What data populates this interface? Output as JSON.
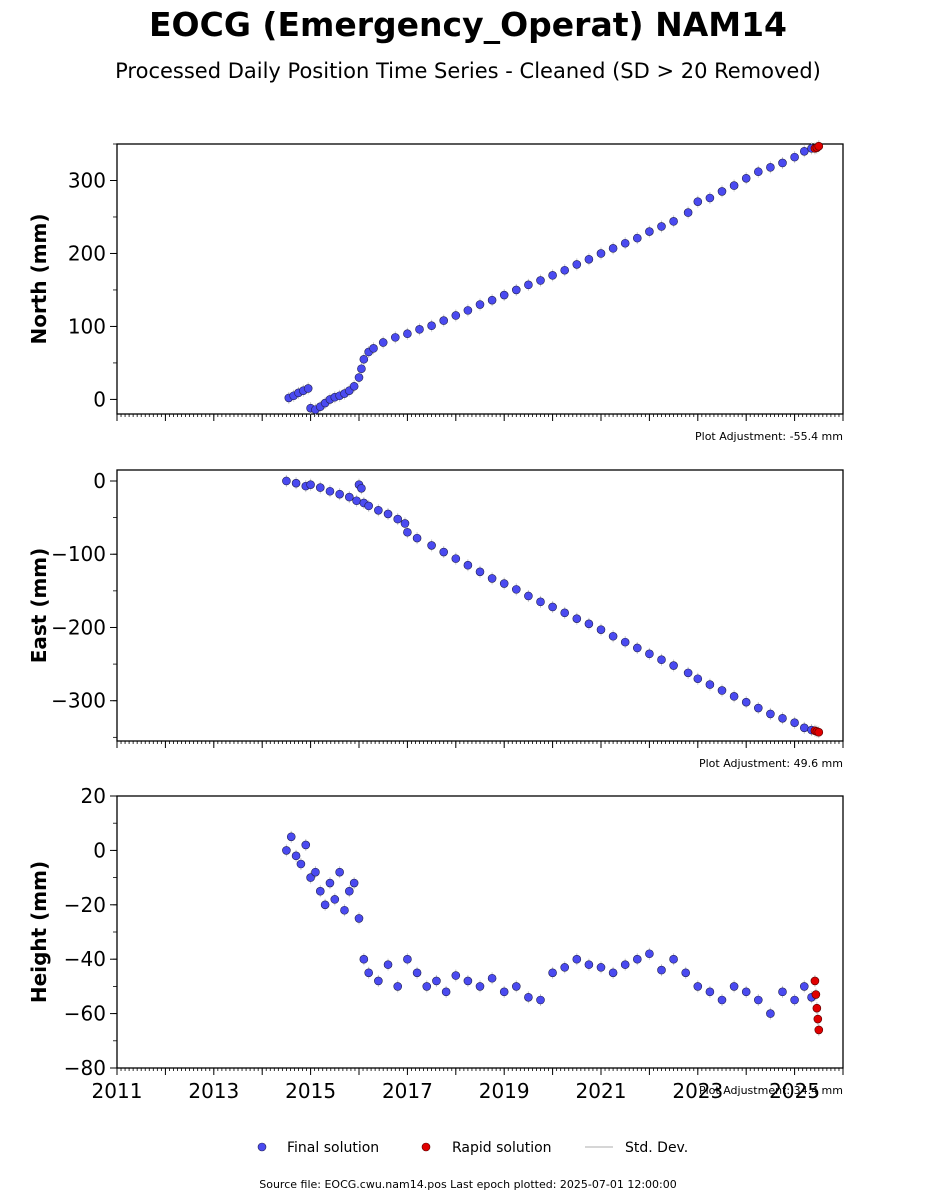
{
  "title": "EOCG (Emergency_Operat) NAM14",
  "subtitle": "Processed Daily Position Time Series - Cleaned (SD > 20 Removed)",
  "colors": {
    "final": "#4a4af0",
    "rapid": "#e00000",
    "stddev": "#c8c8c8",
    "edge": "#202050"
  },
  "legend": {
    "final": "Final solution",
    "rapid": "Rapid solution",
    "stddev": "Std. Dev."
  },
  "footer": "Source file: EOCG.cwu.nam14.pos  Last epoch plotted: 2025-07-01 12:00:00",
  "chart_data": [
    {
      "type": "scatter",
      "ylabel": "North (mm)",
      "xlim": [
        2011,
        2026
      ],
      "ylim": [
        -20,
        350
      ],
      "yticks": [
        0,
        100,
        200,
        300
      ],
      "yticklabels": [
        "0",
        "100",
        "200",
        "300"
      ],
      "adjustment": "Plot Adjustment: -55.4 mm",
      "series": [
        {
          "name": "Final solution",
          "x": [
            2014.55,
            2014.65,
            2014.75,
            2014.85,
            2014.95,
            2015.0,
            2015.1,
            2015.2,
            2015.3,
            2015.4,
            2015.5,
            2015.6,
            2015.7,
            2015.8,
            2015.9,
            2016.0,
            2016.05,
            2016.1,
            2016.2,
            2016.3,
            2016.5,
            2016.75,
            2017.0,
            2017.25,
            2017.5,
            2017.75,
            2018.0,
            2018.25,
            2018.5,
            2018.75,
            2019.0,
            2019.25,
            2019.5,
            2019.75,
            2020.0,
            2020.25,
            2020.5,
            2020.75,
            2021.0,
            2021.25,
            2021.5,
            2021.75,
            2022.0,
            2022.25,
            2022.5,
            2022.8,
            2023.0,
            2023.25,
            2023.5,
            2023.75,
            2024.0,
            2024.25,
            2024.5,
            2024.75,
            2025.0,
            2025.2,
            2025.35
          ],
          "y": [
            2,
            5,
            9,
            12,
            15,
            -12,
            -14,
            -10,
            -5,
            0,
            3,
            5,
            8,
            12,
            18,
            30,
            42,
            55,
            65,
            70,
            78,
            85,
            90,
            96,
            101,
            108,
            115,
            122,
            130,
            136,
            143,
            150,
            157,
            163,
            170,
            177,
            185,
            192,
            200,
            207,
            214,
            221,
            230,
            237,
            244,
            256,
            271,
            276,
            285,
            293,
            303,
            312,
            318,
            324,
            332,
            340,
            344
          ]
        },
        {
          "name": "Rapid solution",
          "x": [
            2025.42,
            2025.46,
            2025.5
          ],
          "y": [
            344,
            345,
            347
          ]
        }
      ]
    },
    {
      "type": "scatter",
      "ylabel": "East (mm)",
      "xlim": [
        2011,
        2026
      ],
      "ylim": [
        -355,
        15
      ],
      "yticks": [
        0,
        -100,
        -200,
        -300
      ],
      "yticklabels": [
        "0",
        "−100",
        "−200",
        "−300"
      ],
      "adjustment": "Plot Adjustment: 49.6 mm",
      "series": [
        {
          "name": "Final solution",
          "x": [
            2014.5,
            2014.7,
            2014.9,
            2015.0,
            2015.2,
            2015.4,
            2015.6,
            2015.8,
            2015.95,
            2016.0,
            2016.05,
            2016.1,
            2016.2,
            2016.4,
            2016.6,
            2016.8,
            2016.95,
            2017.0,
            2017.2,
            2017.5,
            2017.75,
            2018.0,
            2018.25,
            2018.5,
            2018.75,
            2019.0,
            2019.25,
            2019.5,
            2019.75,
            2020.0,
            2020.25,
            2020.5,
            2020.75,
            2021.0,
            2021.25,
            2021.5,
            2021.75,
            2022.0,
            2022.25,
            2022.5,
            2022.8,
            2023.0,
            2023.25,
            2023.5,
            2023.75,
            2024.0,
            2024.25,
            2024.5,
            2024.75,
            2025.0,
            2025.2,
            2025.35
          ],
          "y": [
            0,
            -3,
            -7,
            -5,
            -9,
            -14,
            -18,
            -22,
            -27,
            -5,
            -10,
            -30,
            -34,
            -40,
            -45,
            -52,
            -58,
            -70,
            -78,
            -88,
            -97,
            -106,
            -115,
            -124,
            -133,
            -140,
            -148,
            -157,
            -165,
            -172,
            -180,
            -188,
            -195,
            -203,
            -212,
            -220,
            -228,
            -236,
            -244,
            -252,
            -262,
            -270,
            -278,
            -286,
            -294,
            -302,
            -310,
            -318,
            -324,
            -330,
            -337,
            -340
          ]
        },
        {
          "name": "Rapid solution",
          "x": [
            2025.42,
            2025.46,
            2025.5
          ],
          "y": [
            -341,
            -342,
            -343
          ]
        }
      ]
    },
    {
      "type": "scatter",
      "ylabel": "Height (mm)",
      "xlim": [
        2011,
        2026
      ],
      "ylim": [
        -80,
        20
      ],
      "yticks": [
        20,
        0,
        -20,
        -40,
        -60,
        -80
      ],
      "yticklabels": [
        "20",
        "0",
        "−20",
        "−40",
        "−60",
        "−80"
      ],
      "xticks": [
        2011,
        2013,
        2015,
        2017,
        2019,
        2021,
        2023,
        2025
      ],
      "xticklabels": [
        "2011",
        "2013",
        "2015",
        "2017",
        "2019",
        "2021",
        "2023",
        "2025"
      ],
      "adjustment": "Plot Adjustment: 34.4 mm",
      "series": [
        {
          "name": "Final solution",
          "x": [
            2014.5,
            2014.6,
            2014.7,
            2014.8,
            2014.9,
            2015.0,
            2015.1,
            2015.2,
            2015.3,
            2015.4,
            2015.5,
            2015.6,
            2015.7,
            2015.8,
            2015.9,
            2016.0,
            2016.1,
            2016.2,
            2016.4,
            2016.6,
            2016.8,
            2017.0,
            2017.2,
            2017.4,
            2017.6,
            2017.8,
            2018.0,
            2018.25,
            2018.5,
            2018.75,
            2019.0,
            2019.25,
            2019.5,
            2019.75,
            2020.0,
            2020.25,
            2020.5,
            2020.75,
            2021.0,
            2021.25,
            2021.5,
            2021.75,
            2022.0,
            2022.25,
            2022.5,
            2022.75,
            2023.0,
            2023.25,
            2023.5,
            2023.75,
            2024.0,
            2024.25,
            2024.5,
            2024.75,
            2025.0,
            2025.2,
            2025.35
          ],
          "y": [
            0,
            5,
            -2,
            -5,
            2,
            -10,
            -8,
            -15,
            -20,
            -12,
            -18,
            -8,
            -22,
            -15,
            -12,
            -25,
            -40,
            -45,
            -48,
            -42,
            -50,
            -40,
            -45,
            -50,
            -48,
            -52,
            -46,
            -48,
            -50,
            -47,
            -52,
            -50,
            -54,
            -55,
            -45,
            -43,
            -40,
            -42,
            -43,
            -45,
            -42,
            -40,
            -38,
            -44,
            -40,
            -45,
            -50,
            -52,
            -55,
            -50,
            -52,
            -55,
            -60,
            -52,
            -55,
            -50,
            -54
          ]
        },
        {
          "name": "Rapid solution",
          "x": [
            2025.42,
            2025.44,
            2025.46,
            2025.48,
            2025.5
          ],
          "y": [
            -48,
            -53,
            -58,
            -62,
            -66
          ]
        }
      ]
    }
  ]
}
